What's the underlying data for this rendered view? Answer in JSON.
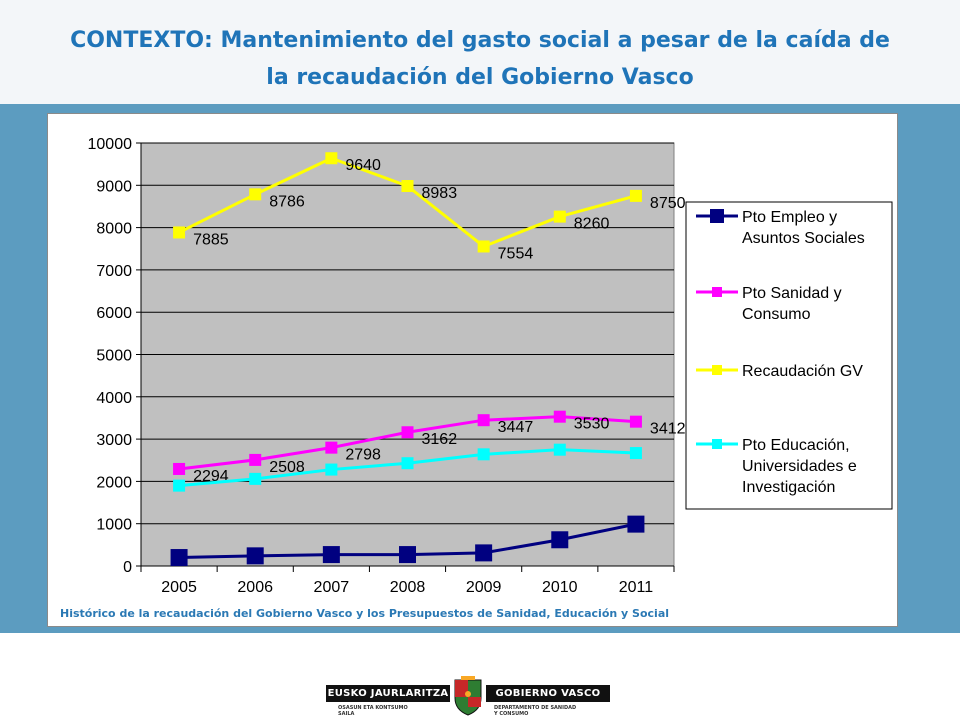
{
  "slide": {
    "title_line1": "CONTEXTO: Mantenimiento del gasto social a pesar de la caída de",
    "title_line2": "la recaudación del Gobierno Vasco",
    "caption": "Histórico de la recaudación del Gobierno Vasco y los Presupuestos de Sanidad, Educación y Social"
  },
  "footer": {
    "left_bar": "EUSKO JAURLARITZA",
    "right_bar": "GOBIERNO VASCO",
    "left_sub_1": "OSASUN ETA KONTSUMO",
    "left_sub_2": "SAILA",
    "right_sub_1": "DEPARTAMENTO DE SANIDAD",
    "right_sub_2": "Y CONSUMO"
  },
  "chart_data": {
    "type": "line",
    "categories": [
      "2005",
      "2006",
      "2007",
      "2008",
      "2009",
      "2010",
      "2011"
    ],
    "ylim": [
      0,
      10000
    ],
    "yticks": [
      "0",
      "1000",
      "2000",
      "3000",
      "4000",
      "5000",
      "6000",
      "7000",
      "8000",
      "9000",
      "10000"
    ],
    "grid": true,
    "legend_position": "right",
    "plot_background": "#c0c0c0",
    "series": [
      {
        "name": "Pto Empleo y Asuntos Sociales",
        "legend_lines": [
          "Pto Empleo y",
          "Asuntos Sociales"
        ],
        "color": "#000080",
        "values": [
          200,
          240,
          270,
          270,
          310,
          620,
          990
        ],
        "labels": []
      },
      {
        "name": "Pto Sanidad y Consumo",
        "legend_lines": [
          "Pto Sanidad y",
          "Consumo"
        ],
        "color": "#ff00ff",
        "values": [
          2294,
          2508,
          2798,
          3162,
          3447,
          3530,
          3412
        ],
        "labels": [
          "2294",
          "2508",
          "2798",
          "3162",
          "3447",
          "3530",
          "3412"
        ]
      },
      {
        "name": "Recaudación GV",
        "legend_lines": [
          "Recaudación GV"
        ],
        "color": "#ffff00",
        "values": [
          7885,
          8786,
          9640,
          8983,
          7554,
          8260,
          8750
        ],
        "labels": [
          "7885",
          "8786",
          "9640",
          "8983",
          "7554",
          "8260",
          "8750"
        ]
      },
      {
        "name": "Pto Educación, Universidades e Investigación",
        "legend_lines": [
          "Pto Educación,",
          "Universidades e",
          "Investigación"
        ],
        "color": "#00ffff",
        "values": [
          1900,
          2060,
          2280,
          2430,
          2640,
          2750,
          2670
        ],
        "labels": []
      }
    ]
  }
}
